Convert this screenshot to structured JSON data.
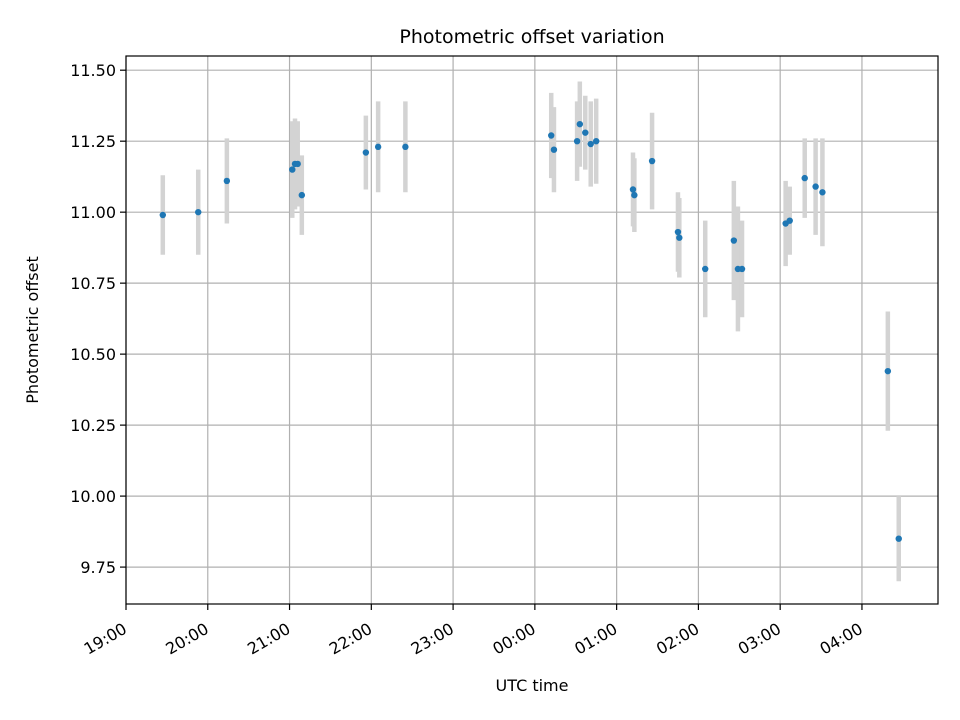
{
  "chart_data": {
    "type": "scatter",
    "title": "Photometric offset variation",
    "xlabel": "UTC time",
    "ylabel": "Photometric offset",
    "x_axis": "time (hours since 19:00 UTC, spanning midnight)",
    "xlim": [
      19.0,
      28.93
    ],
    "ylim": [
      9.62,
      11.55
    ],
    "x_ticks": [
      "19:00",
      "20:00",
      "21:00",
      "22:00",
      "23:00",
      "00:00",
      "01:00",
      "02:00",
      "03:00",
      "04:00"
    ],
    "y_ticks": [
      "9.75",
      "10.00",
      "10.25",
      "10.50",
      "10.75",
      "11.00",
      "11.25",
      "11.50"
    ],
    "grid": true,
    "legend": "none",
    "colors": {
      "points": "#1f77b4",
      "errorbars": "#d3d3d3",
      "grid": "#b0b0b0"
    },
    "points": [
      {
        "x": "19:27",
        "y": 10.99,
        "err": 0.14
      },
      {
        "x": "19:53",
        "y": 11.0,
        "err": 0.15
      },
      {
        "x": "20:14",
        "y": 11.11,
        "err": 0.15
      },
      {
        "x": "21:02",
        "y": 11.15,
        "err": 0.17
      },
      {
        "x": "21:04",
        "y": 11.17,
        "err": 0.16
      },
      {
        "x": "21:06",
        "y": 11.17,
        "err": 0.15
      },
      {
        "x": "21:09",
        "y": 11.06,
        "err": 0.14
      },
      {
        "x": "21:56",
        "y": 11.21,
        "err": 0.13
      },
      {
        "x": "22:05",
        "y": 11.23,
        "err": 0.16
      },
      {
        "x": "22:25",
        "y": 11.23,
        "err": 0.16
      },
      {
        "x": "00:12",
        "y": 11.27,
        "err": 0.15
      },
      {
        "x": "00:14",
        "y": 11.22,
        "err": 0.15
      },
      {
        "x": "00:31",
        "y": 11.25,
        "err": 0.14
      },
      {
        "x": "00:33",
        "y": 11.31,
        "err": 0.15
      },
      {
        "x": "00:37",
        "y": 11.28,
        "err": 0.13
      },
      {
        "x": "00:41",
        "y": 11.24,
        "err": 0.15
      },
      {
        "x": "00:45",
        "y": 11.25,
        "err": 0.15
      },
      {
        "x": "01:12",
        "y": 11.08,
        "err": 0.13
      },
      {
        "x": "01:13",
        "y": 11.06,
        "err": 0.13
      },
      {
        "x": "01:26",
        "y": 11.18,
        "err": 0.17
      },
      {
        "x": "01:45",
        "y": 10.93,
        "err": 0.14
      },
      {
        "x": "01:46",
        "y": 10.91,
        "err": 0.14
      },
      {
        "x": "02:05",
        "y": 10.8,
        "err": 0.17
      },
      {
        "x": "02:26",
        "y": 10.9,
        "err": 0.21
      },
      {
        "x": "02:29",
        "y": 10.8,
        "err": 0.22
      },
      {
        "x": "02:32",
        "y": 10.8,
        "err": 0.17
      },
      {
        "x": "03:04",
        "y": 10.96,
        "err": 0.15
      },
      {
        "x": "03:07",
        "y": 10.97,
        "err": 0.12
      },
      {
        "x": "03:18",
        "y": 11.12,
        "err": 0.14
      },
      {
        "x": "03:26",
        "y": 11.09,
        "err": 0.17
      },
      {
        "x": "03:31",
        "y": 11.07,
        "err": 0.19
      },
      {
        "x": "04:19",
        "y": 10.44,
        "err": 0.21
      },
      {
        "x": "04:27",
        "y": 9.85,
        "err": 0.15
      }
    ]
  }
}
